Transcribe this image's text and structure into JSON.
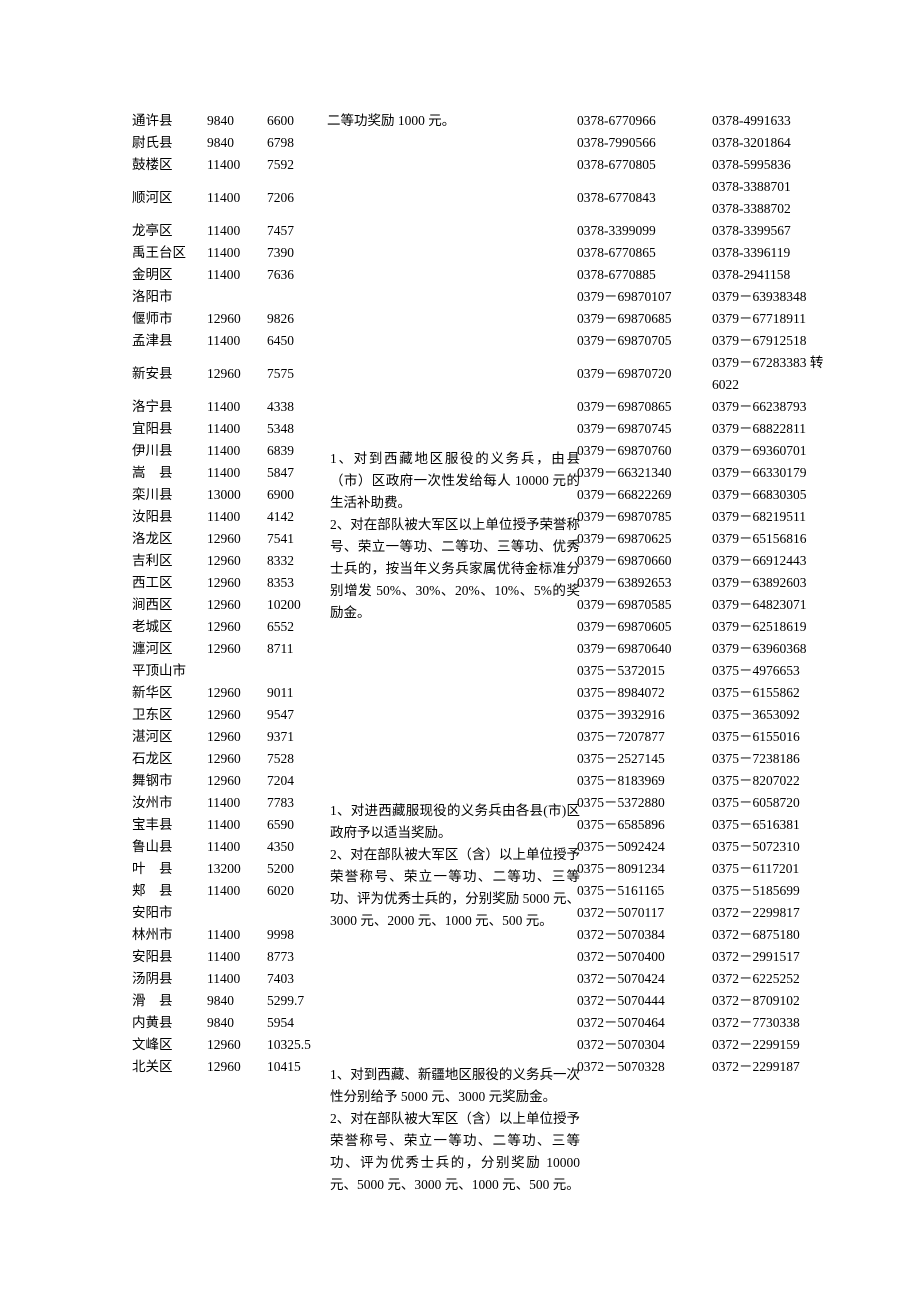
{
  "rows": [
    {
      "loc": "通许县",
      "n1": "9840",
      "n2": "6600",
      "mid": "二等功奖励 1000 元。",
      "p1": "0378-6770966",
      "p2": "0378-4991633"
    },
    {
      "loc": "尉氏县",
      "n1": "9840",
      "n2": "6798",
      "p1": "0378-7990566",
      "p2": "0378-3201864"
    },
    {
      "loc": "鼓楼区",
      "n1": "11400",
      "n2": "7592",
      "p1": "0378-6770805",
      "p2": "0378-5995836"
    },
    {
      "loc": "顺河区",
      "n1": "11400",
      "n2": "7206",
      "p1": "0378-6770843",
      "p2": "0378-3388701",
      "p2b": "0378-3388702",
      "double": true
    },
    {
      "loc": "龙亭区",
      "n1": "11400",
      "n2": "7457",
      "p1": "0378-3399099",
      "p2": "0378-3399567"
    },
    {
      "loc": "禹王台区",
      "n1": "11400",
      "n2": "7390",
      "p1": "0378-6770865",
      "p2": "0378-3396119"
    },
    {
      "loc": "金明区",
      "n1": "11400",
      "n2": "7636",
      "p1": "0378-6770885",
      "p2": "0378-2941158"
    },
    {
      "loc": "洛阳市",
      "n1": "",
      "n2": "",
      "p1": "0379－69870107",
      "p2": "0379－63938348"
    },
    {
      "loc": "偃师市",
      "n1": "12960",
      "n2": "9826",
      "p1": "0379－69870685",
      "p2": "0379－67718911"
    },
    {
      "loc": "孟津县",
      "n1": "11400",
      "n2": "6450",
      "p1": "0379－69870705",
      "p2": "0379－67912518"
    },
    {
      "loc": "新安县",
      "n1": "12960",
      "n2": "7575",
      "p1": "0379－69870720",
      "p2": "0379－67283383 转",
      "p2b": "6022",
      "double": true
    },
    {
      "loc": "洛宁县",
      "n1": "11400",
      "n2": "4338",
      "p1": "0379－69870865",
      "p2": "0379－66238793"
    },
    {
      "loc": "宜阳县",
      "n1": "11400",
      "n2": "5348",
      "p1": "0379－69870745",
      "p2": "0379－68822811"
    },
    {
      "loc": "伊川县",
      "n1": "11400",
      "n2": "6839",
      "p1": "0379－69870760",
      "p2": "0379－69360701"
    },
    {
      "loc": "嵩　县",
      "n1": "11400",
      "n2": "5847",
      "p1": "0379－66321340",
      "p2": "0379－66330179"
    },
    {
      "loc": "栾川县",
      "n1": "13000",
      "n2": "6900",
      "p1": "0379－66822269",
      "p2": "0379－66830305"
    },
    {
      "loc": "汝阳县",
      "n1": "11400",
      "n2": "4142",
      "p1": "0379－69870785",
      "p2": "0379－68219511"
    },
    {
      "loc": "洛龙区",
      "n1": "12960",
      "n2": "7541",
      "p1": "0379－69870625",
      "p2": "0379－65156816"
    },
    {
      "loc": "吉利区",
      "n1": "12960",
      "n2": "8332",
      "p1": "0379－69870660",
      "p2": "0379－66912443"
    },
    {
      "loc": "西工区",
      "n1": "12960",
      "n2": "8353",
      "p1": "0379－63892653",
      "p2": "0379－63892603"
    },
    {
      "loc": "涧西区",
      "n1": "12960",
      "n2": "10200",
      "p1": "0379－69870585",
      "p2": "0379－64823071"
    },
    {
      "loc": "老城区",
      "n1": "12960",
      "n2": "6552",
      "p1": "0379－69870605",
      "p2": "0379－62518619"
    },
    {
      "loc": "瀍河区",
      "n1": "12960",
      "n2": "8711",
      "p1": "0379－69870640",
      "p2": "0379－63960368"
    },
    {
      "loc": "平顶山市",
      "n1": "",
      "n2": "",
      "p1": "0375－5372015",
      "p2": "0375－4976653"
    },
    {
      "loc": "新华区",
      "n1": "12960",
      "n2": "9011",
      "p1": "0375－8984072",
      "p2": "0375－6155862"
    },
    {
      "loc": "卫东区",
      "n1": "12960",
      "n2": "9547",
      "p1": "0375－3932916",
      "p2": "0375－3653092"
    },
    {
      "loc": "湛河区",
      "n1": "12960",
      "n2": "9371",
      "p1": "0375－7207877",
      "p2": "0375－6155016"
    },
    {
      "loc": "石龙区",
      "n1": "12960",
      "n2": "7528",
      "p1": "0375－2527145",
      "p2": "0375－7238186"
    },
    {
      "loc": "舞钢市",
      "n1": "12960",
      "n2": "7204",
      "p1": "0375－8183969",
      "p2": "0375－8207022"
    },
    {
      "loc": "汝州市",
      "n1": "11400",
      "n2": "7783",
      "p1": "0375－5372880",
      "p2": "0375－6058720"
    },
    {
      "loc": "宝丰县",
      "n1": "11400",
      "n2": "6590",
      "p1": "0375－6585896",
      "p2": "0375－6516381"
    },
    {
      "loc": "鲁山县",
      "n1": "11400",
      "n2": "4350",
      "p1": "0375－5092424",
      "p2": "0375－5072310"
    },
    {
      "loc": "叶　县",
      "n1": "13200",
      "n2": "5200",
      "p1": "0375－8091234",
      "p2": "0375－6117201"
    },
    {
      "loc": "郏　县",
      "n1": "11400",
      "n2": "6020",
      "p1": "0375－5161165",
      "p2": "0375－5185699"
    },
    {
      "loc": "安阳市",
      "n1": "",
      "n2": "",
      "p1": "0372－5070117",
      "p2": "0372－2299817"
    },
    {
      "loc": "林州市",
      "n1": "11400",
      "n2": "9998",
      "p1": "0372－5070384",
      "p2": "0372－6875180"
    },
    {
      "loc": "安阳县",
      "n1": "11400",
      "n2": "8773",
      "p1": "0372－5070400",
      "p2": "0372－2991517"
    },
    {
      "loc": "汤阴县",
      "n1": "11400",
      "n2": "7403",
      "p1": "0372－5070424",
      "p2": "0372－6225252"
    },
    {
      "loc": "滑　县",
      "n1": "9840",
      "n2": "5299.7",
      "p1": "0372－5070444",
      "p2": "0372－8709102"
    },
    {
      "loc": "内黄县",
      "n1": "9840",
      "n2": "5954",
      "p1": "0372－5070464",
      "p2": "0372－7730338"
    },
    {
      "loc": "文峰区",
      "n1": "12960",
      "n2": "10325.5",
      "p1": "0372－5070304",
      "p2": "0372－2299159"
    },
    {
      "loc": "北关区",
      "n1": "12960",
      "n2": "10415",
      "p1": "0372－5070328",
      "p2": "0372－2299187"
    }
  ],
  "notes": {
    "note1": "1、对到西藏地区服役的义务兵，由县（市）区政府一次性发给每人 10000 元的生活补助费。\n2、对在部队被大军区以上单位授予荣誉称号、荣立一等功、二等功、三等功、优秀士兵的，按当年义务兵家属优待金标准分别增发 50%、30%、20%、10%、5%的奖励金。",
    "note2": "1、对进西藏服现役的义务兵由各县(市)区政府予以适当奖励。\n2、对在部队被大军区（含）以上单位授予荣誉称号、荣立一等功、二等功、三等功、评为优秀士兵的，分别奖励 5000 元、3000 元、2000 元、1000 元、500 元。",
    "note3": "1、对到西藏、新疆地区服役的义务兵一次性分别给予 5000 元、3000 元奖励金。\n2、对在部队被大军区（含）以上单位授予荣誉称号、荣立一等功、二等功、三等功、评为优秀士兵的，分别奖励 10000 元、5000 元、3000 元、1000 元、500 元。"
  },
  "first_row_mid": "二等功奖励 1000 元。"
}
